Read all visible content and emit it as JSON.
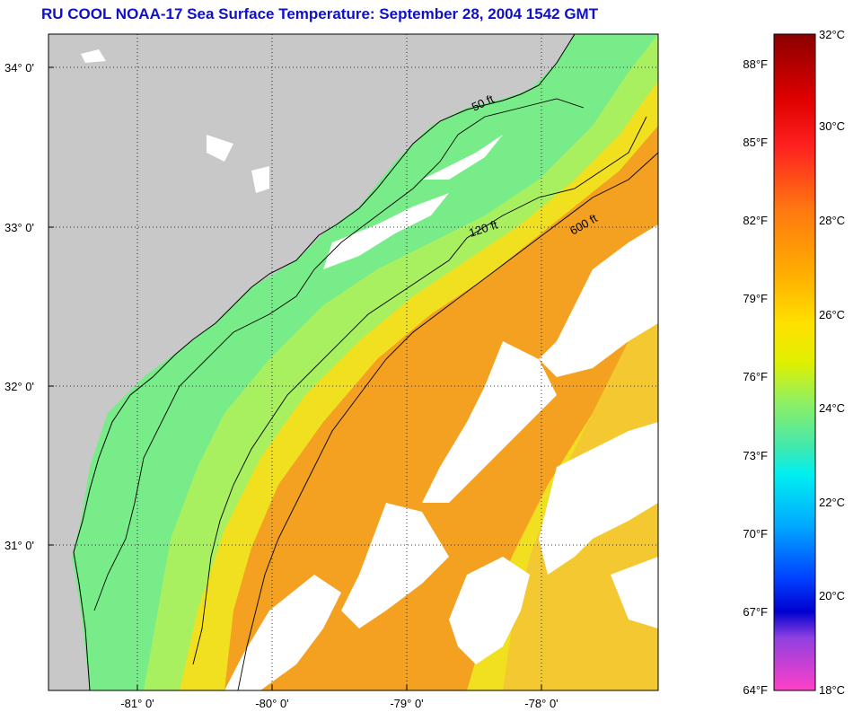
{
  "title": "RU COOL  NOAA-17  Sea Surface Temperature:  September 28, 2004 1542 GMT",
  "lat_labels": [
    "34° 0'",
    "33° 0'",
    "32° 0'",
    "31° 0'"
  ],
  "lon_labels": [
    "-81° 0'",
    "-80° 0'",
    "-79° 0'",
    "-78° 0'"
  ],
  "contour_labels": [
    "50 ft",
    "120 ft",
    "600 ft"
  ],
  "colorbar": {
    "fahrenheit": [
      "88°F",
      "85°F",
      "82°F",
      "79°F",
      "76°F",
      "73°F",
      "70°F",
      "67°F",
      "64°F"
    ],
    "celsius": [
      "32°C",
      "30°C",
      "28°C",
      "26°C",
      "24°C",
      "22°C",
      "20°C",
      "18°C"
    ]
  },
  "colors": {
    "title": "#1010c8",
    "land": "#c8c8c8",
    "cloud": "#ffffff",
    "warm": "#f4a020",
    "mid": "#f0e020",
    "cool": "#78ec88"
  }
}
